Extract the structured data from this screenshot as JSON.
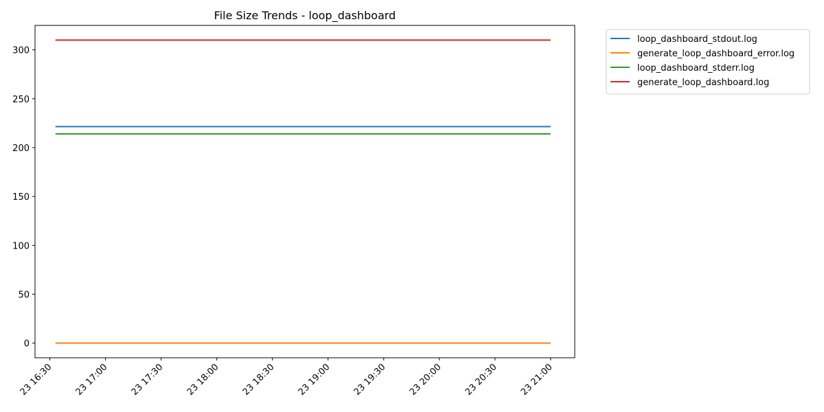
{
  "chart_data": {
    "type": "line",
    "title": "File Size Trends - loop_dashboard",
    "xlabel": "",
    "ylabel": "",
    "x_ticks": [
      "23 16:30",
      "23 17:00",
      "23 17:30",
      "23 18:00",
      "23 18:30",
      "23 19:00",
      "23 19:30",
      "23 20:00",
      "23 20:30",
      "23 21:00"
    ],
    "x_range": [
      "16:22",
      "21:13"
    ],
    "ylim": [
      -15,
      325
    ],
    "y_ticks": [
      0,
      50,
      100,
      150,
      200,
      250,
      300
    ],
    "x": [
      "16:33",
      "21:00"
    ],
    "series": [
      {
        "name": "loop_dashboard_stdout.log",
        "values": [
          221.5,
          221.5
        ],
        "color": "#1f77b4"
      },
      {
        "name": "generate_loop_dashboard_error.log",
        "values": [
          0,
          0
        ],
        "color": "#ff7f0e"
      },
      {
        "name": "loop_dashboard_stderr.log",
        "values": [
          214,
          214
        ],
        "color": "#2ca02c"
      },
      {
        "name": "generate_loop_dashboard.log",
        "values": [
          310,
          310
        ],
        "color": "#d62728"
      }
    ],
    "grid": false,
    "legend_position": "outside-top-right"
  }
}
